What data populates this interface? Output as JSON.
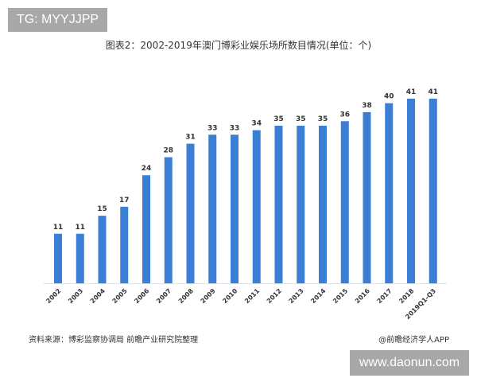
{
  "tag": "TG: MYYJJPP",
  "site": "www.daonun.com",
  "source": "资料来源：博彩监察协调局 前瞻产业研究院整理",
  "credit": "@前瞻经济学人APP",
  "colors": {
    "bar": "#3a7fd5"
  },
  "chart_data": {
    "type": "bar",
    "title": "图表2：2002-2019年澳门博彩业娱乐场所数目情况(单位：个)",
    "categories": [
      "2002",
      "2003",
      "2004",
      "2005",
      "2006",
      "2007",
      "2008",
      "2009",
      "2010",
      "2011",
      "2012",
      "2013",
      "2014",
      "2015",
      "2016",
      "2017",
      "2018",
      "2019Q1-Q3"
    ],
    "values": [
      11,
      11,
      15,
      17,
      24,
      28,
      31,
      33,
      33,
      34,
      35,
      35,
      35,
      36,
      38,
      40,
      41,
      41
    ],
    "xlabel": "",
    "ylabel": "",
    "ylim": [
      0,
      41
    ],
    "grid": false,
    "data_labels": true
  }
}
